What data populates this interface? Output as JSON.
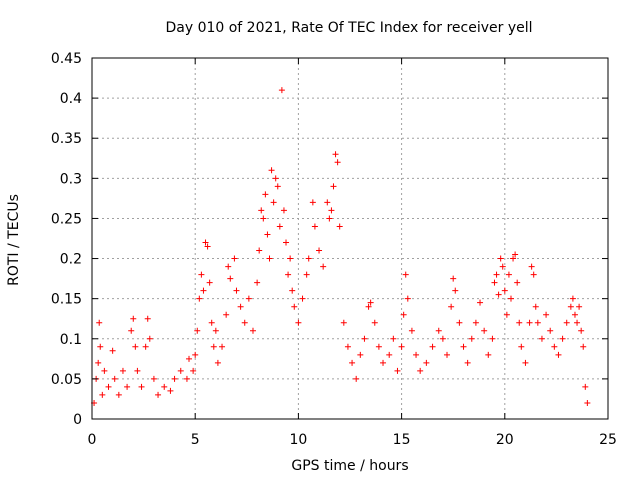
{
  "chart_data": {
    "type": "scatter",
    "title": "Day 010 of 2021, Rate Of TEC Index for receiver yell",
    "xlabel": "GPS time / hours",
    "ylabel": "ROTI / TECUs",
    "xlim": [
      0,
      25
    ],
    "ylim": [
      0,
      0.45
    ],
    "xticks": [
      0,
      5,
      10,
      15,
      20,
      25
    ],
    "xtick_labels": [
      "0",
      "5",
      "10",
      "15",
      "20",
      "25"
    ],
    "yticks": [
      0,
      0.05,
      0.1,
      0.15,
      0.2,
      0.25,
      0.3,
      0.35,
      0.4,
      0.45
    ],
    "ytick_labels": [
      "0",
      "0.05",
      "0.1",
      "0.15",
      "0.2",
      "0.25",
      "0.3",
      "0.35",
      "0.4",
      "0.45"
    ],
    "grid": true,
    "marker": "+",
    "color": "#ff0000",
    "series": [
      {
        "name": "ROTI",
        "points": [
          [
            0.1,
            0.02
          ],
          [
            0.2,
            0.05
          ],
          [
            0.3,
            0.07
          ],
          [
            0.35,
            0.12
          ],
          [
            0.4,
            0.09
          ],
          [
            0.5,
            0.03
          ],
          [
            0.6,
            0.06
          ],
          [
            0.8,
            0.04
          ],
          [
            1.0,
            0.085
          ],
          [
            1.1,
            0.05
          ],
          [
            1.3,
            0.03
          ],
          [
            1.5,
            0.06
          ],
          [
            1.7,
            0.04
          ],
          [
            1.9,
            0.11
          ],
          [
            2.0,
            0.125
          ],
          [
            2.1,
            0.09
          ],
          [
            2.2,
            0.06
          ],
          [
            2.4,
            0.04
          ],
          [
            2.6,
            0.09
          ],
          [
            2.7,
            0.125
          ],
          [
            2.8,
            0.1
          ],
          [
            3.0,
            0.05
          ],
          [
            3.2,
            0.03
          ],
          [
            3.5,
            0.04
          ],
          [
            3.8,
            0.035
          ],
          [
            4.0,
            0.05
          ],
          [
            4.3,
            0.06
          ],
          [
            4.6,
            0.05
          ],
          [
            4.7,
            0.075
          ],
          [
            4.9,
            0.06
          ],
          [
            5.0,
            0.08
          ],
          [
            5.1,
            0.11
          ],
          [
            5.2,
            0.15
          ],
          [
            5.3,
            0.18
          ],
          [
            5.4,
            0.16
          ],
          [
            5.5,
            0.22
          ],
          [
            5.6,
            0.215
          ],
          [
            5.7,
            0.17
          ],
          [
            5.8,
            0.12
          ],
          [
            5.9,
            0.09
          ],
          [
            6.0,
            0.11
          ],
          [
            6.1,
            0.07
          ],
          [
            6.3,
            0.09
          ],
          [
            6.5,
            0.13
          ],
          [
            6.6,
            0.19
          ],
          [
            6.7,
            0.175
          ],
          [
            6.9,
            0.2
          ],
          [
            7.0,
            0.16
          ],
          [
            7.2,
            0.14
          ],
          [
            7.4,
            0.12
          ],
          [
            7.6,
            0.15
          ],
          [
            7.8,
            0.11
          ],
          [
            8.0,
            0.17
          ],
          [
            8.1,
            0.21
          ],
          [
            8.2,
            0.26
          ],
          [
            8.3,
            0.25
          ],
          [
            8.4,
            0.28
          ],
          [
            8.5,
            0.23
          ],
          [
            8.6,
            0.2
          ],
          [
            8.7,
            0.31
          ],
          [
            8.8,
            0.27
          ],
          [
            8.9,
            0.3
          ],
          [
            9.0,
            0.29
          ],
          [
            9.1,
            0.24
          ],
          [
            9.2,
            0.41
          ],
          [
            9.3,
            0.26
          ],
          [
            9.4,
            0.22
          ],
          [
            9.5,
            0.18
          ],
          [
            9.6,
            0.2
          ],
          [
            9.7,
            0.16
          ],
          [
            9.8,
            0.14
          ],
          [
            10.0,
            0.12
          ],
          [
            10.2,
            0.15
          ],
          [
            10.4,
            0.18
          ],
          [
            10.5,
            0.2
          ],
          [
            10.7,
            0.27
          ],
          [
            10.8,
            0.24
          ],
          [
            11.0,
            0.21
          ],
          [
            11.2,
            0.19
          ],
          [
            11.4,
            0.27
          ],
          [
            11.5,
            0.25
          ],
          [
            11.6,
            0.26
          ],
          [
            11.7,
            0.29
          ],
          [
            11.8,
            0.33
          ],
          [
            11.9,
            0.32
          ],
          [
            12.0,
            0.24
          ],
          [
            12.2,
            0.12
          ],
          [
            12.4,
            0.09
          ],
          [
            12.6,
            0.07
          ],
          [
            12.8,
            0.05
          ],
          [
            13.0,
            0.08
          ],
          [
            13.2,
            0.1
          ],
          [
            13.4,
            0.14
          ],
          [
            13.5,
            0.145
          ],
          [
            13.7,
            0.12
          ],
          [
            13.9,
            0.09
          ],
          [
            14.1,
            0.07
          ],
          [
            14.4,
            0.08
          ],
          [
            14.6,
            0.1
          ],
          [
            14.8,
            0.06
          ],
          [
            15.0,
            0.09
          ],
          [
            15.1,
            0.13
          ],
          [
            15.2,
            0.18
          ],
          [
            15.3,
            0.15
          ],
          [
            15.5,
            0.11
          ],
          [
            15.7,
            0.08
          ],
          [
            15.9,
            0.06
          ],
          [
            16.2,
            0.07
          ],
          [
            16.5,
            0.09
          ],
          [
            16.8,
            0.11
          ],
          [
            17.0,
            0.1
          ],
          [
            17.2,
            0.08
          ],
          [
            17.4,
            0.14
          ],
          [
            17.5,
            0.175
          ],
          [
            17.6,
            0.16
          ],
          [
            17.8,
            0.12
          ],
          [
            18.0,
            0.09
          ],
          [
            18.2,
            0.07
          ],
          [
            18.4,
            0.1
          ],
          [
            18.6,
            0.12
          ],
          [
            18.8,
            0.145
          ],
          [
            19.0,
            0.11
          ],
          [
            19.2,
            0.08
          ],
          [
            19.4,
            0.1
          ],
          [
            19.5,
            0.17
          ],
          [
            19.6,
            0.18
          ],
          [
            19.7,
            0.155
          ],
          [
            19.8,
            0.2
          ],
          [
            19.9,
            0.19
          ],
          [
            20.0,
            0.16
          ],
          [
            20.1,
            0.13
          ],
          [
            20.2,
            0.18
          ],
          [
            20.3,
            0.15
          ],
          [
            20.4,
            0.2
          ],
          [
            20.5,
            0.205
          ],
          [
            20.6,
            0.17
          ],
          [
            20.7,
            0.12
          ],
          [
            20.8,
            0.09
          ],
          [
            21.0,
            0.07
          ],
          [
            21.2,
            0.12
          ],
          [
            21.3,
            0.19
          ],
          [
            21.4,
            0.18
          ],
          [
            21.5,
            0.14
          ],
          [
            21.6,
            0.12
          ],
          [
            21.8,
            0.1
          ],
          [
            22.0,
            0.13
          ],
          [
            22.2,
            0.11
          ],
          [
            22.4,
            0.09
          ],
          [
            22.6,
            0.08
          ],
          [
            22.8,
            0.1
          ],
          [
            23.0,
            0.12
          ],
          [
            23.2,
            0.14
          ],
          [
            23.3,
            0.15
          ],
          [
            23.4,
            0.13
          ],
          [
            23.5,
            0.12
          ],
          [
            23.6,
            0.14
          ],
          [
            23.7,
            0.11
          ],
          [
            23.8,
            0.09
          ],
          [
            23.9,
            0.04
          ],
          [
            24.0,
            0.02
          ]
        ]
      }
    ]
  }
}
